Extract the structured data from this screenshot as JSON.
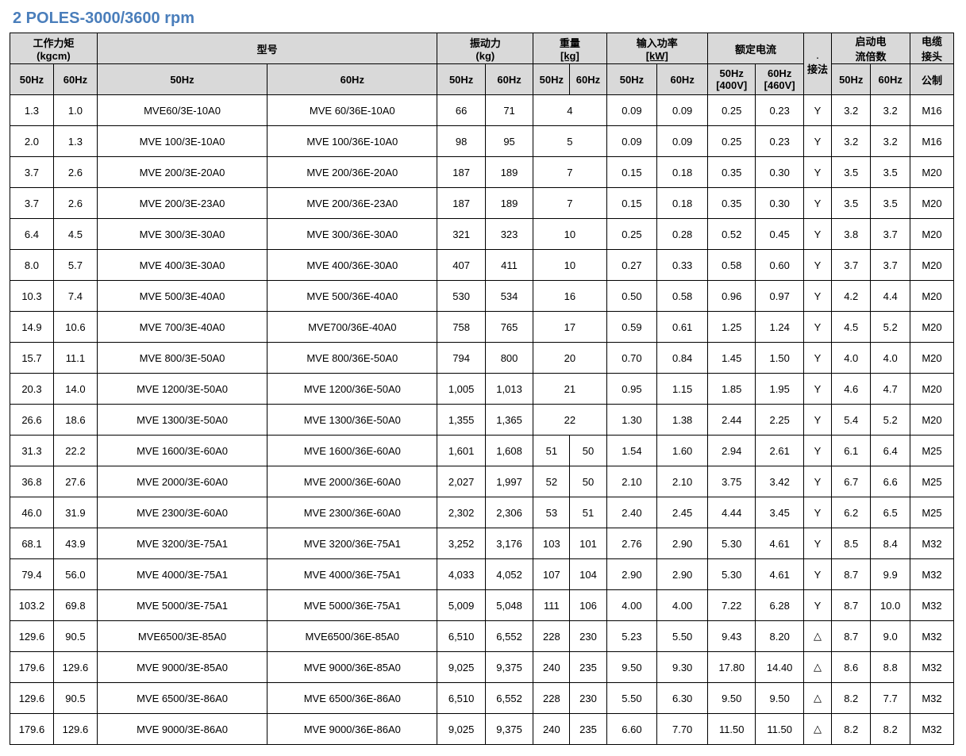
{
  "title": "2   POLES-3000/3600 rpm",
  "headers": {
    "workingMoment": "工作力矩",
    "workingMomentUnit": "(kgcm)",
    "model": "型号",
    "vibForce": "振动力",
    "vibForceUnit": "(kg)",
    "weight": "重量",
    "weightUnit": "[kg]",
    "power": "输入功率",
    "powerUnit": "[kW]",
    "current": "额定电流",
    "connection": "接法",
    "startRatio": "启动电",
    "startRatioUnit": "流倍数",
    "cable": "电缆",
    "cableUnit": "接头",
    "hz50": "50Hz",
    "hz60": "60Hz",
    "hz50_400": "50Hz",
    "hz50_400v": "[400V]",
    "hz60_460": "60Hz",
    "hz60_460v": "[460V]",
    "metric": "公制",
    "dash": "."
  },
  "rows": [
    {
      "wm50": "1.3",
      "wm60": "1.0",
      "m50": "MVE60/3E-10A0",
      "m60": "MVE 60/36E-10A0",
      "v50": "66",
      "v60": "71",
      "wt50": "4",
      "wt60": "",
      "p50": "0.09",
      "p60": "0.09",
      "c50": "0.25",
      "c60": "0.23",
      "con": "Y",
      "s50": "3.2",
      "s60": "3.2",
      "cab": "M16",
      "merge": true
    },
    {
      "wm50": "2.0",
      "wm60": "1.3",
      "m50": "MVE 100/3E-10A0",
      "m60": "MVE 100/36E-10A0",
      "v50": "98",
      "v60": "95",
      "wt50": "5",
      "wt60": "",
      "p50": "0.09",
      "p60": "0.09",
      "c50": "0.25",
      "c60": "0.23",
      "con": "Y",
      "s50": "3.2",
      "s60": "3.2",
      "cab": "M16",
      "merge": true
    },
    {
      "wm50": "3.7",
      "wm60": "2.6",
      "m50": "MVE 200/3E-20A0",
      "m60": "MVE 200/36E-20A0",
      "v50": "187",
      "v60": "189",
      "wt50": "7",
      "wt60": "",
      "p50": "0.15",
      "p60": "0.18",
      "c50": "0.35",
      "c60": "0.30",
      "con": "Y",
      "s50": "3.5",
      "s60": "3.5",
      "cab": "M20",
      "merge": true
    },
    {
      "wm50": "3.7",
      "wm60": "2.6",
      "m50": "MVE 200/3E-23A0",
      "m60": "MVE 200/36E-23A0",
      "v50": "187",
      "v60": "189",
      "wt50": "7",
      "wt60": "",
      "p50": "0.15",
      "p60": "0.18",
      "c50": "0.35",
      "c60": "0.30",
      "con": "Y",
      "s50": "3.5",
      "s60": "3.5",
      "cab": "M20",
      "merge": true
    },
    {
      "wm50": "6.4",
      "wm60": "4.5",
      "m50": "MVE 300/3E-30A0",
      "m60": "MVE 300/36E-30A0",
      "v50": "321",
      "v60": "323",
      "wt50": "10",
      "wt60": "",
      "p50": "0.25",
      "p60": "0.28",
      "c50": "0.52",
      "c60": "0.45",
      "con": "Y",
      "s50": "3.8",
      "s60": "3.7",
      "cab": "M20",
      "merge": true
    },
    {
      "wm50": "8.0",
      "wm60": "5.7",
      "m50": "MVE 400/3E-30A0",
      "m60": "MVE 400/36E-30A0",
      "v50": "407",
      "v60": "411",
      "wt50": "10",
      "wt60": "",
      "p50": "0.27",
      "p60": "0.33",
      "c50": "0.58",
      "c60": "0.60",
      "con": "Y",
      "s50": "3.7",
      "s60": "3.7",
      "cab": "M20",
      "merge": true
    },
    {
      "wm50": "10.3",
      "wm60": "7.4",
      "m50": "MVE 500/3E-40A0",
      "m60": "MVE 500/36E-40A0",
      "v50": "530",
      "v60": "534",
      "wt50": "16",
      "wt60": "",
      "p50": "0.50",
      "p60": "0.58",
      "c50": "0.96",
      "c60": "0.97",
      "con": "Y",
      "s50": "4.2",
      "s60": "4.4",
      "cab": "M20",
      "merge": true
    },
    {
      "wm50": "14.9",
      "wm60": "10.6",
      "m50": "MVE 700/3E-40A0",
      "m60": "MVE700/36E-40A0",
      "v50": "758",
      "v60": "765",
      "wt50": "17",
      "wt60": "",
      "p50": "0.59",
      "p60": "0.61",
      "c50": "1.25",
      "c60": "1.24",
      "con": "Y",
      "s50": "4.5",
      "s60": "5.2",
      "cab": "M20",
      "merge": true
    },
    {
      "wm50": "15.7",
      "wm60": "11.1",
      "m50": "MVE 800/3E-50A0",
      "m60": "MVE 800/36E-50A0",
      "v50": "794",
      "v60": "800",
      "wt50": "20",
      "wt60": "",
      "p50": "0.70",
      "p60": "0.84",
      "c50": "1.45",
      "c60": "1.50",
      "con": "Y",
      "s50": "4.0",
      "s60": "4.0",
      "cab": "M20",
      "merge": true
    },
    {
      "wm50": "20.3",
      "wm60": "14.0",
      "m50": "MVE 1200/3E-50A0",
      "m60": "MVE 1200/36E-50A0",
      "v50": "1,005",
      "v60": "1,013",
      "wt50": "21",
      "wt60": "",
      "p50": "0.95",
      "p60": "1.15",
      "c50": "1.85",
      "c60": "1.95",
      "con": "Y",
      "s50": "4.6",
      "s60": "4.7",
      "cab": "M20",
      "merge": true
    },
    {
      "wm50": "26.6",
      "wm60": "18.6",
      "m50": "MVE 1300/3E-50A0",
      "m60": "MVE 1300/36E-50A0",
      "v50": "1,355",
      "v60": "1,365",
      "wt50": "22",
      "wt60": "",
      "p50": "1.30",
      "p60": "1.38",
      "c50": "2.44",
      "c60": "2.25",
      "con": "Y",
      "s50": "5.4",
      "s60": "5.2",
      "cab": "M20",
      "merge": true
    },
    {
      "wm50": "31.3",
      "wm60": "22.2",
      "m50": "MVE 1600/3E-60A0",
      "m60": "MVE 1600/36E-60A0",
      "v50": "1,601",
      "v60": "1,608",
      "wt50": "51",
      "wt60": "50",
      "p50": "1.54",
      "p60": "1.60",
      "c50": "2.94",
      "c60": "2.61",
      "con": "Y",
      "s50": "6.1",
      "s60": "6.4",
      "cab": "M25",
      "merge": false
    },
    {
      "wm50": "36.8",
      "wm60": "27.6",
      "m50": "MVE 2000/3E-60A0",
      "m60": "MVE 2000/36E-60A0",
      "v50": "2,027",
      "v60": "1,997",
      "wt50": "52",
      "wt60": "50",
      "p50": "2.10",
      "p60": "2.10",
      "c50": "3.75",
      "c60": "3.42",
      "con": "Y",
      "s50": "6.7",
      "s60": "6.6",
      "cab": "M25",
      "merge": false
    },
    {
      "wm50": "46.0",
      "wm60": "31.9",
      "m50": "MVE 2300/3E-60A0",
      "m60": "MVE 2300/36E-60A0",
      "v50": "2,302",
      "v60": "2,306",
      "wt50": "53",
      "wt60": "51",
      "p50": "2.40",
      "p60": "2.45",
      "c50": "4.44",
      "c60": "3.45",
      "con": "Y",
      "s50": "6.2",
      "s60": "6.5",
      "cab": "M25",
      "merge": false
    },
    {
      "wm50": "68.1",
      "wm60": "43.9",
      "m50": "MVE 3200/3E-75A1",
      "m60": "MVE 3200/36E-75A1",
      "v50": "3,252",
      "v60": "3,176",
      "wt50": "103",
      "wt60": "101",
      "p50": "2.76",
      "p60": "2.90",
      "c50": "5.30",
      "c60": "4.61",
      "con": "Y",
      "s50": "8.5",
      "s60": "8.4",
      "cab": "M32",
      "merge": false
    },
    {
      "wm50": "79.4",
      "wm60": "56.0",
      "m50": "MVE 4000/3E-75A1",
      "m60": "MVE 4000/36E-75A1",
      "v50": "4,033",
      "v60": "4,052",
      "wt50": "107",
      "wt60": "104",
      "p50": "2.90",
      "p60": "2.90",
      "c50": "5.30",
      "c60": "4.61",
      "con": "Y",
      "s50": "8.7",
      "s60": "9.9",
      "cab": "M32",
      "merge": false
    },
    {
      "wm50": "103.2",
      "wm60": "69.8",
      "m50": "MVE 5000/3E-75A1",
      "m60": "MVE 5000/36E-75A1",
      "v50": "5,009",
      "v60": "5,048",
      "wt50": "111",
      "wt60": "106",
      "p50": "4.00",
      "p60": "4.00",
      "c50": "7.22",
      "c60": "6.28",
      "con": "Y",
      "s50": "8.7",
      "s60": "10.0",
      "cab": "M32",
      "merge": false
    },
    {
      "wm50": "129.6",
      "wm60": "90.5",
      "m50": "MVE6500/3E-85A0",
      "m60": "MVE6500/36E-85A0",
      "v50": "6,510",
      "v60": "6,552",
      "wt50": "228",
      "wt60": "230",
      "p50": "5.23",
      "p60": "5.50",
      "c50": "9.43",
      "c60": "8.20",
      "con": "△",
      "s50": "8.7",
      "s60": "9.0",
      "cab": "M32",
      "merge": false
    },
    {
      "wm50": "179.6",
      "wm60": "129.6",
      "m50": "MVE 9000/3E-85A0",
      "m60": "MVE 9000/36E-85A0",
      "v50": "9,025",
      "v60": "9,375",
      "wt50": "240",
      "wt60": "235",
      "p50": "9.50",
      "p60": "9.30",
      "c50": "17.80",
      "c60": "14.40",
      "con": "△",
      "s50": "8.6",
      "s60": "8.8",
      "cab": "M32",
      "merge": false
    },
    {
      "wm50": "129.6",
      "wm60": "90.5",
      "m50": "MVE 6500/3E-86A0",
      "m60": "MVE 6500/36E-86A0",
      "v50": "6,510",
      "v60": "6,552",
      "wt50": "228",
      "wt60": "230",
      "p50": "5.50",
      "p60": "6.30",
      "c50": "9.50",
      "c60": "9.50",
      "con": "△",
      "s50": "8.2",
      "s60": "7.7",
      "cab": "M32",
      "merge": false
    },
    {
      "wm50": "179.6",
      "wm60": "129.6",
      "m50": "MVE 9000/3E-86A0",
      "m60": "MVE 9000/36E-86A0",
      "v50": "9,025",
      "v60": "9,375",
      "wt50": "240",
      "wt60": "235",
      "p50": "6.60",
      "p60": "7.70",
      "c50": "11.50",
      "c60": "11.50",
      "con": "△",
      "s50": "8.2",
      "s60": "8.2",
      "cab": "M32",
      "merge": false
    }
  ]
}
